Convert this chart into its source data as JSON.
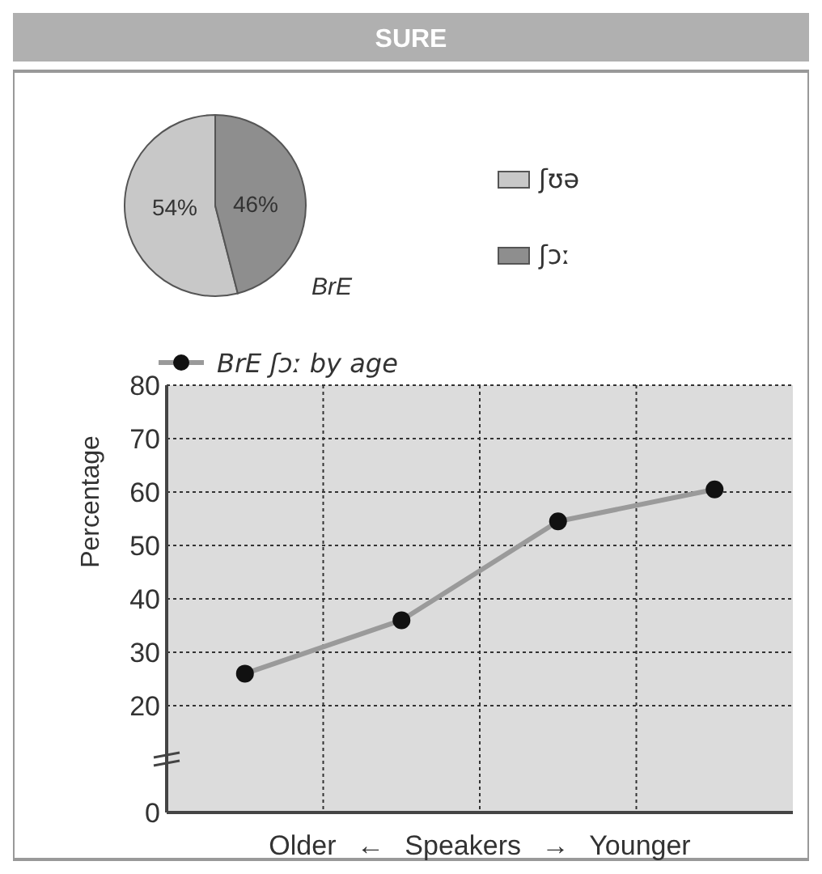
{
  "chart_data": [
    {
      "type": "pie",
      "title": "SURE",
      "subtitle": "BrE",
      "categories": [
        "ʃʊə",
        "ʃɔː"
      ],
      "values": [
        54,
        46
      ],
      "colors": [
        "#c8c8c8",
        "#8e8e8e"
      ],
      "value_labels": [
        "54%",
        "46%"
      ],
      "legend": "right"
    },
    {
      "type": "line",
      "ylabel": "Percentage",
      "xlabel": "Older ← Speakers → Younger",
      "categories": [
        null,
        null,
        null,
        null
      ],
      "series": [
        {
          "name": "BrE ʃɔː by age",
          "color": "#9a9a9a",
          "values": [
            26,
            36,
            54.5,
            60.5
          ]
        }
      ],
      "ylim": [
        0,
        80
      ],
      "yticks": [
        0,
        20,
        30,
        40,
        50,
        60,
        70,
        80
      ],
      "grid": true,
      "marker": "circle",
      "line_style": "solid",
      "legend": "top left"
    }
  ]
}
